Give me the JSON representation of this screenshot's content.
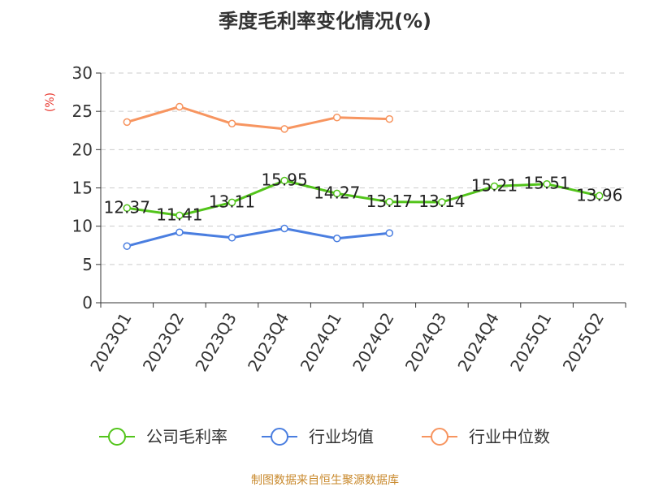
{
  "title": "季度毛利率变化情况(%)",
  "source_text": "制图数据来自恒生聚源数据库",
  "colors": {
    "title": "#333333",
    "unit": "#e8382f",
    "source": "#c98a2e",
    "grid": "#cccccc",
    "axis": "#333333"
  },
  "chart_data": {
    "type": "line",
    "title": "季度毛利率变化情况(%)",
    "ylabel": "(%)",
    "xlabel": "",
    "ylim": [
      0,
      30
    ],
    "yticks": [
      0,
      5,
      10,
      15,
      20,
      25,
      30
    ],
    "grid": true,
    "legend_position": "bottom",
    "categories": [
      "2023Q1",
      "2023Q2",
      "2023Q3",
      "2023Q4",
      "2024Q1",
      "2024Q2",
      "2024Q3",
      "2024Q4",
      "2025Q1",
      "2025Q2"
    ],
    "series": [
      {
        "name": "公司毛利率",
        "color": "#52c41a",
        "show_labels": true,
        "values": [
          12.37,
          11.41,
          13.11,
          15.95,
          14.27,
          13.17,
          13.14,
          15.21,
          15.51,
          13.96
        ],
        "labels": [
          "12.37",
          "11.41",
          "13.11",
          "15.95",
          "14.27",
          "13.17",
          "13.14",
          "15.21",
          "15.51",
          "13.96"
        ]
      },
      {
        "name": "行业均值",
        "color": "#4a7ee0",
        "show_labels": false,
        "values": [
          7.4,
          9.2,
          8.5,
          9.7,
          8.4,
          9.1,
          null,
          null,
          null,
          null
        ]
      },
      {
        "name": "行业中位数",
        "color": "#f79560",
        "show_labels": false,
        "values": [
          23.6,
          25.6,
          23.4,
          22.7,
          24.2,
          24.0,
          null,
          null,
          null,
          null
        ]
      }
    ]
  }
}
